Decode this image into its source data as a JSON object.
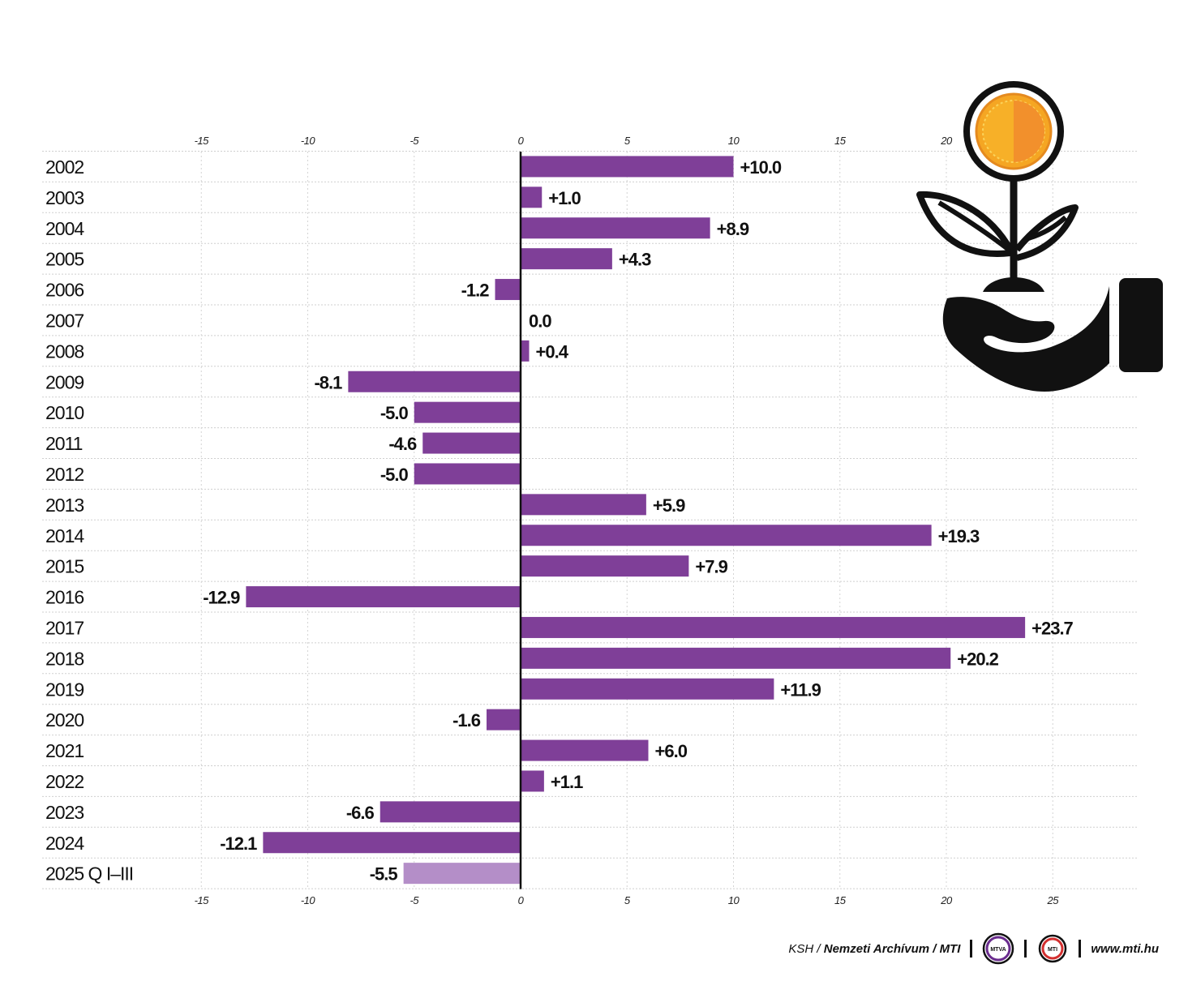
{
  "chart_data": {
    "type": "bar",
    "orientation": "horizontal",
    "title": "",
    "xlabel": "",
    "ylabel": "",
    "xlim": [
      -15,
      25
    ],
    "grid": true,
    "x_ticks_top": [
      -15,
      -10,
      -5,
      0,
      5,
      10,
      15,
      20
    ],
    "x_ticks_bottom": [
      -15,
      -10,
      -5,
      0,
      5,
      10,
      15,
      20,
      25
    ],
    "x_tick_labels_top": [
      "-15",
      "-10",
      "-5",
      "0",
      "5",
      "10",
      "15",
      "20"
    ],
    "x_tick_labels_bottom": [
      "-15",
      "-10",
      "-5",
      "0",
      "5",
      "10",
      "15",
      "20",
      "25"
    ],
    "categories": [
      "2002",
      "2003",
      "2004",
      "2005",
      "2006",
      "2007",
      "2008",
      "2009",
      "2010",
      "2011",
      "2012",
      "2013",
      "2014",
      "2015",
      "2016",
      "2017",
      "2018",
      "2019",
      "2020",
      "2021",
      "2022",
      "2023",
      "2024",
      "2025 Q I–III"
    ],
    "values": [
      10.0,
      1.0,
      8.9,
      4.3,
      -1.2,
      0.0,
      0.4,
      -8.1,
      -5.0,
      -4.6,
      -5.0,
      5.9,
      19.3,
      7.9,
      -12.9,
      23.7,
      20.2,
      11.9,
      -1.6,
      6.0,
      1.1,
      -6.6,
      -12.1,
      -5.5
    ],
    "value_labels": [
      "+10.0",
      "+1.0",
      "+8.9",
      "+4.3",
      "-1.2",
      "0.0",
      "+0.4",
      "-8.1",
      "-5.0",
      "-4.6",
      "-5.0",
      "+5.9",
      "+19.3",
      "+7.9",
      "-12.9",
      "+23.7",
      "+20.2",
      "+11.9",
      "-1.6",
      "+6.0",
      "+1.1",
      "-6.6",
      "-12.1",
      "-5.5"
    ],
    "preliminary": [
      false,
      false,
      false,
      false,
      false,
      false,
      false,
      false,
      false,
      false,
      false,
      false,
      false,
      false,
      false,
      false,
      false,
      false,
      false,
      false,
      false,
      false,
      false,
      true
    ],
    "colors": {
      "bar": "#7f3f98",
      "bar_preliminary": "#b48ec8",
      "zero_line": "#111111"
    }
  },
  "footer": {
    "source_italic": "KSH /",
    "source_bold": "Nemzeti Archívum / MTI",
    "logo1_text": "MTVA",
    "logo2_text": "MTI",
    "url": "www.mti.hu"
  },
  "illustration": {
    "icon": "plant-coin-hand-icon",
    "coin_color": "#f5a623"
  }
}
